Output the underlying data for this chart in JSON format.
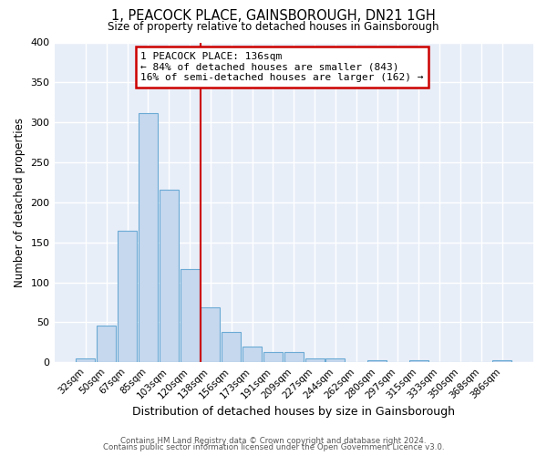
{
  "title": "1, PEACOCK PLACE, GAINSBOROUGH, DN21 1GH",
  "subtitle": "Size of property relative to detached houses in Gainsborough",
  "xlabel": "Distribution of detached houses by size in Gainsborough",
  "ylabel": "Number of detached properties",
  "bar_labels": [
    "32sqm",
    "50sqm",
    "67sqm",
    "85sqm",
    "103sqm",
    "120sqm",
    "138sqm",
    "156sqm",
    "173sqm",
    "191sqm",
    "209sqm",
    "227sqm",
    "244sqm",
    "262sqm",
    "280sqm",
    "297sqm",
    "315sqm",
    "333sqm",
    "350sqm",
    "368sqm",
    "386sqm"
  ],
  "bar_values": [
    5,
    46,
    165,
    312,
    216,
    117,
    69,
    38,
    20,
    13,
    13,
    5,
    5,
    0,
    3,
    0,
    3,
    0,
    0,
    0,
    2
  ],
  "bar_color": "#c5d8ee",
  "bar_edgecolor": "#6aaad4",
  "vline_color": "#cc0000",
  "annotation_title": "1 PEACOCK PLACE: 136sqm",
  "annotation_line1": "← 84% of detached houses are smaller (843)",
  "annotation_line2": "16% of semi-detached houses are larger (162) →",
  "annotation_box_edgecolor": "#cc0000",
  "ylim": [
    0,
    400
  ],
  "yticks": [
    0,
    50,
    100,
    150,
    200,
    250,
    300,
    350,
    400
  ],
  "background_color": "#e8eef8",
  "footer_line1": "Contains HM Land Registry data © Crown copyright and database right 2024.",
  "footer_line2": "Contains public sector information licensed under the Open Government Licence v3.0."
}
